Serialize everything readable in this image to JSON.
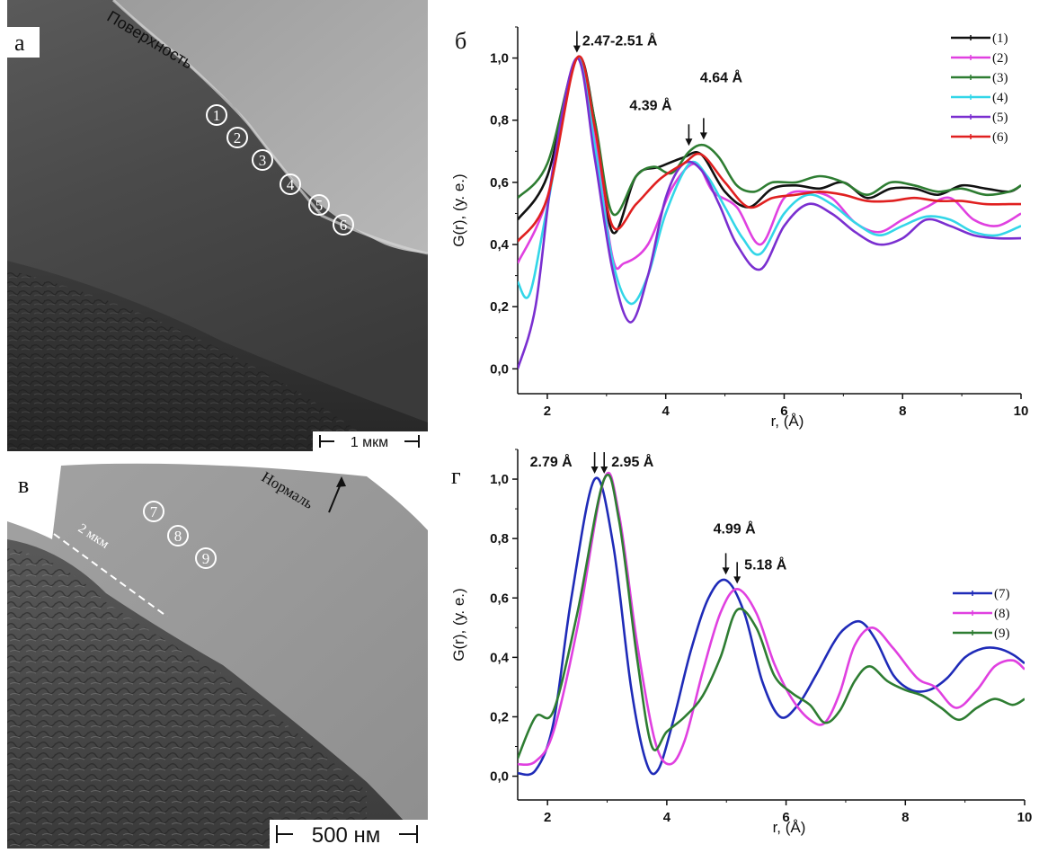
{
  "micrographs": {
    "a": {
      "letter": "а",
      "surface_label": "Поверхность",
      "markers": [
        "1",
        "2",
        "3",
        "4",
        "5",
        "6"
      ],
      "scalebar": "1 мкм"
    },
    "v": {
      "letter": "в",
      "normal_label": "Нормаль",
      "depth_label": "2 мкм",
      "markers": [
        "7",
        "8",
        "9"
      ],
      "scalebar": "500 нм"
    }
  },
  "chart_data": [
    {
      "panel": "б",
      "type": "line",
      "xlabel": "r, (Å)",
      "ylabel": "G(r), (у. е.)",
      "xlim": [
        1.5,
        10
      ],
      "ylim": [
        -0.08,
        1.1
      ],
      "xticks": [
        "2",
        "4",
        "6",
        "8",
        "10"
      ],
      "yticks": [
        "0,0",
        "0,2",
        "0,4",
        "0,6",
        "0,8",
        "1,0"
      ],
      "legend": "top-right",
      "annotations": [
        {
          "text": "2.47-2.51 Å",
          "x": 2.5,
          "y": 1.0
        },
        {
          "text": "4.39 Å",
          "x": 4.39,
          "y": 0.7
        },
        {
          "text": "4.64 Å",
          "x": 4.64,
          "y": 0.72
        }
      ],
      "series": [
        {
          "name": "(1)",
          "color": "#111111",
          "x": [
            1.5,
            2.0,
            2.5,
            2.8,
            3.1,
            3.5,
            3.9,
            4.3,
            4.6,
            5.0,
            5.4,
            5.8,
            6.2,
            6.6,
            7.0,
            7.4,
            7.8,
            8.2,
            8.6,
            9.0,
            9.4,
            9.8,
            10.0
          ],
          "y": [
            0.48,
            0.62,
            1.0,
            0.8,
            0.44,
            0.62,
            0.65,
            0.68,
            0.69,
            0.57,
            0.52,
            0.58,
            0.59,
            0.58,
            0.6,
            0.55,
            0.58,
            0.58,
            0.56,
            0.59,
            0.58,
            0.57,
            0.59
          ]
        },
        {
          "name": "(2)",
          "color": "#e040e0",
          "x": [
            1.5,
            2.0,
            2.5,
            2.8,
            3.1,
            3.3,
            3.7,
            4.1,
            4.5,
            4.8,
            5.2,
            5.6,
            6.0,
            6.4,
            6.8,
            7.2,
            7.6,
            8.0,
            8.4,
            8.8,
            9.2,
            9.6,
            10.0
          ],
          "y": [
            0.34,
            0.55,
            1.0,
            0.74,
            0.36,
            0.34,
            0.4,
            0.58,
            0.66,
            0.57,
            0.52,
            0.4,
            0.55,
            0.57,
            0.55,
            0.47,
            0.44,
            0.48,
            0.52,
            0.55,
            0.48,
            0.46,
            0.5
          ]
        },
        {
          "name": "(3)",
          "color": "#2e7d32",
          "x": [
            1.5,
            2.0,
            2.5,
            2.8,
            3.1,
            3.5,
            3.8,
            4.1,
            4.4,
            4.64,
            4.9,
            5.2,
            5.5,
            5.8,
            6.2,
            6.6,
            7.0,
            7.4,
            7.8,
            8.2,
            8.6,
            9.0,
            9.4,
            9.8,
            10.0
          ],
          "y": [
            0.55,
            0.66,
            1.0,
            0.8,
            0.5,
            0.62,
            0.65,
            0.63,
            0.7,
            0.72,
            0.68,
            0.59,
            0.57,
            0.6,
            0.6,
            0.62,
            0.6,
            0.56,
            0.6,
            0.59,
            0.57,
            0.58,
            0.56,
            0.57,
            0.59
          ]
        },
        {
          "name": "(4)",
          "color": "#33d6e8",
          "x": [
            1.5,
            1.7,
            2.0,
            2.5,
            2.8,
            3.1,
            3.4,
            3.7,
            4.0,
            4.4,
            4.7,
            5.0,
            5.3,
            5.6,
            6.0,
            6.4,
            6.8,
            7.2,
            7.6,
            8.0,
            8.4,
            8.8,
            9.2,
            9.6,
            10.0
          ],
          "y": [
            0.28,
            0.24,
            0.52,
            1.0,
            0.72,
            0.35,
            0.21,
            0.3,
            0.5,
            0.66,
            0.62,
            0.52,
            0.42,
            0.37,
            0.5,
            0.56,
            0.53,
            0.47,
            0.43,
            0.46,
            0.49,
            0.48,
            0.44,
            0.43,
            0.46
          ]
        },
        {
          "name": "(5)",
          "color": "#7a2fd0",
          "x": [
            1.5,
            1.8,
            2.1,
            2.5,
            2.8,
            3.1,
            3.4,
            3.7,
            4.0,
            4.3,
            4.6,
            4.9,
            5.2,
            5.6,
            6.0,
            6.4,
            6.8,
            7.2,
            7.6,
            8.0,
            8.4,
            8.8,
            9.2,
            9.6,
            10.0
          ],
          "y": [
            0.0,
            0.2,
            0.65,
            1.0,
            0.68,
            0.32,
            0.15,
            0.3,
            0.55,
            0.66,
            0.64,
            0.53,
            0.4,
            0.32,
            0.46,
            0.53,
            0.5,
            0.44,
            0.4,
            0.42,
            0.48,
            0.46,
            0.43,
            0.42,
            0.42
          ]
        },
        {
          "name": "(6)",
          "color": "#e02020",
          "x": [
            1.5,
            2.0,
            2.5,
            2.8,
            3.1,
            3.5,
            3.9,
            4.3,
            4.6,
            5.0,
            5.4,
            5.8,
            6.2,
            6.6,
            7.0,
            7.4,
            7.8,
            8.2,
            8.6,
            9.0,
            9.4,
            9.8,
            10.0
          ],
          "y": [
            0.41,
            0.55,
            1.0,
            0.78,
            0.46,
            0.53,
            0.61,
            0.66,
            0.69,
            0.6,
            0.52,
            0.55,
            0.56,
            0.57,
            0.56,
            0.54,
            0.54,
            0.55,
            0.54,
            0.54,
            0.53,
            0.53,
            0.53
          ]
        }
      ]
    },
    {
      "panel": "г",
      "type": "line",
      "xlabel": "r, (Å)",
      "ylabel": "G(r), (у. е.)",
      "xlim": [
        1.5,
        10
      ],
      "ylim": [
        -0.08,
        1.1
      ],
      "xticks": [
        "2",
        "4",
        "6",
        "8",
        "10"
      ],
      "yticks": [
        "0,0",
        "0,2",
        "0,4",
        "0,6",
        "0,8",
        "1,0"
      ],
      "legend": "top-right",
      "annotations": [
        {
          "text": "2.79 Å",
          "x": 2.79,
          "y": 1.0
        },
        {
          "text": "2.95 Å",
          "x": 2.95,
          "y": 1.0
        },
        {
          "text": "4.99 Å",
          "x": 4.99,
          "y": 0.66
        },
        {
          "text": "5.18 Å",
          "x": 5.18,
          "y": 0.63
        }
      ],
      "series": [
        {
          "name": "(7)",
          "color": "#1f2bb8",
          "x": [
            1.5,
            1.8,
            2.1,
            2.4,
            2.79,
            3.1,
            3.4,
            3.65,
            3.85,
            4.1,
            4.4,
            4.7,
            4.99,
            5.3,
            5.6,
            5.9,
            6.2,
            6.5,
            6.8,
            7.0,
            7.25,
            7.5,
            7.8,
            8.1,
            8.4,
            8.7,
            9.0,
            9.3,
            9.55,
            9.8,
            10.0
          ],
          "y": [
            0.01,
            0.02,
            0.18,
            0.6,
            1.0,
            0.78,
            0.3,
            0.05,
            0.02,
            0.18,
            0.42,
            0.6,
            0.66,
            0.55,
            0.32,
            0.2,
            0.24,
            0.34,
            0.45,
            0.5,
            0.52,
            0.46,
            0.34,
            0.29,
            0.29,
            0.33,
            0.4,
            0.43,
            0.43,
            0.41,
            0.38
          ]
        },
        {
          "name": "(8)",
          "color": "#e040e0",
          "x": [
            1.5,
            1.8,
            2.1,
            2.5,
            2.95,
            3.2,
            3.5,
            3.8,
            4.05,
            4.3,
            4.6,
            4.9,
            5.18,
            5.5,
            5.8,
            6.1,
            6.4,
            6.65,
            6.9,
            7.15,
            7.45,
            7.8,
            8.2,
            8.5,
            8.85,
            9.2,
            9.5,
            9.8,
            10.0
          ],
          "y": [
            0.04,
            0.05,
            0.15,
            0.5,
            1.0,
            0.88,
            0.45,
            0.12,
            0.04,
            0.12,
            0.35,
            0.55,
            0.63,
            0.55,
            0.38,
            0.26,
            0.19,
            0.18,
            0.28,
            0.44,
            0.5,
            0.43,
            0.33,
            0.3,
            0.23,
            0.29,
            0.37,
            0.39,
            0.36
          ]
        },
        {
          "name": "(9)",
          "color": "#2e7d32",
          "x": [
            1.5,
            1.8,
            2.1,
            2.5,
            2.95,
            3.2,
            3.5,
            3.75,
            4.0,
            4.3,
            4.6,
            4.9,
            5.18,
            5.5,
            5.8,
            6.1,
            6.4,
            6.65,
            6.9,
            7.15,
            7.4,
            7.7,
            8.0,
            8.3,
            8.6,
            8.9,
            9.2,
            9.5,
            9.8,
            10.0
          ],
          "y": [
            0.06,
            0.2,
            0.22,
            0.55,
            1.0,
            0.86,
            0.4,
            0.1,
            0.15,
            0.2,
            0.27,
            0.4,
            0.56,
            0.5,
            0.34,
            0.28,
            0.24,
            0.18,
            0.22,
            0.32,
            0.37,
            0.32,
            0.29,
            0.27,
            0.23,
            0.19,
            0.23,
            0.26,
            0.24,
            0.26
          ]
        }
      ]
    }
  ]
}
